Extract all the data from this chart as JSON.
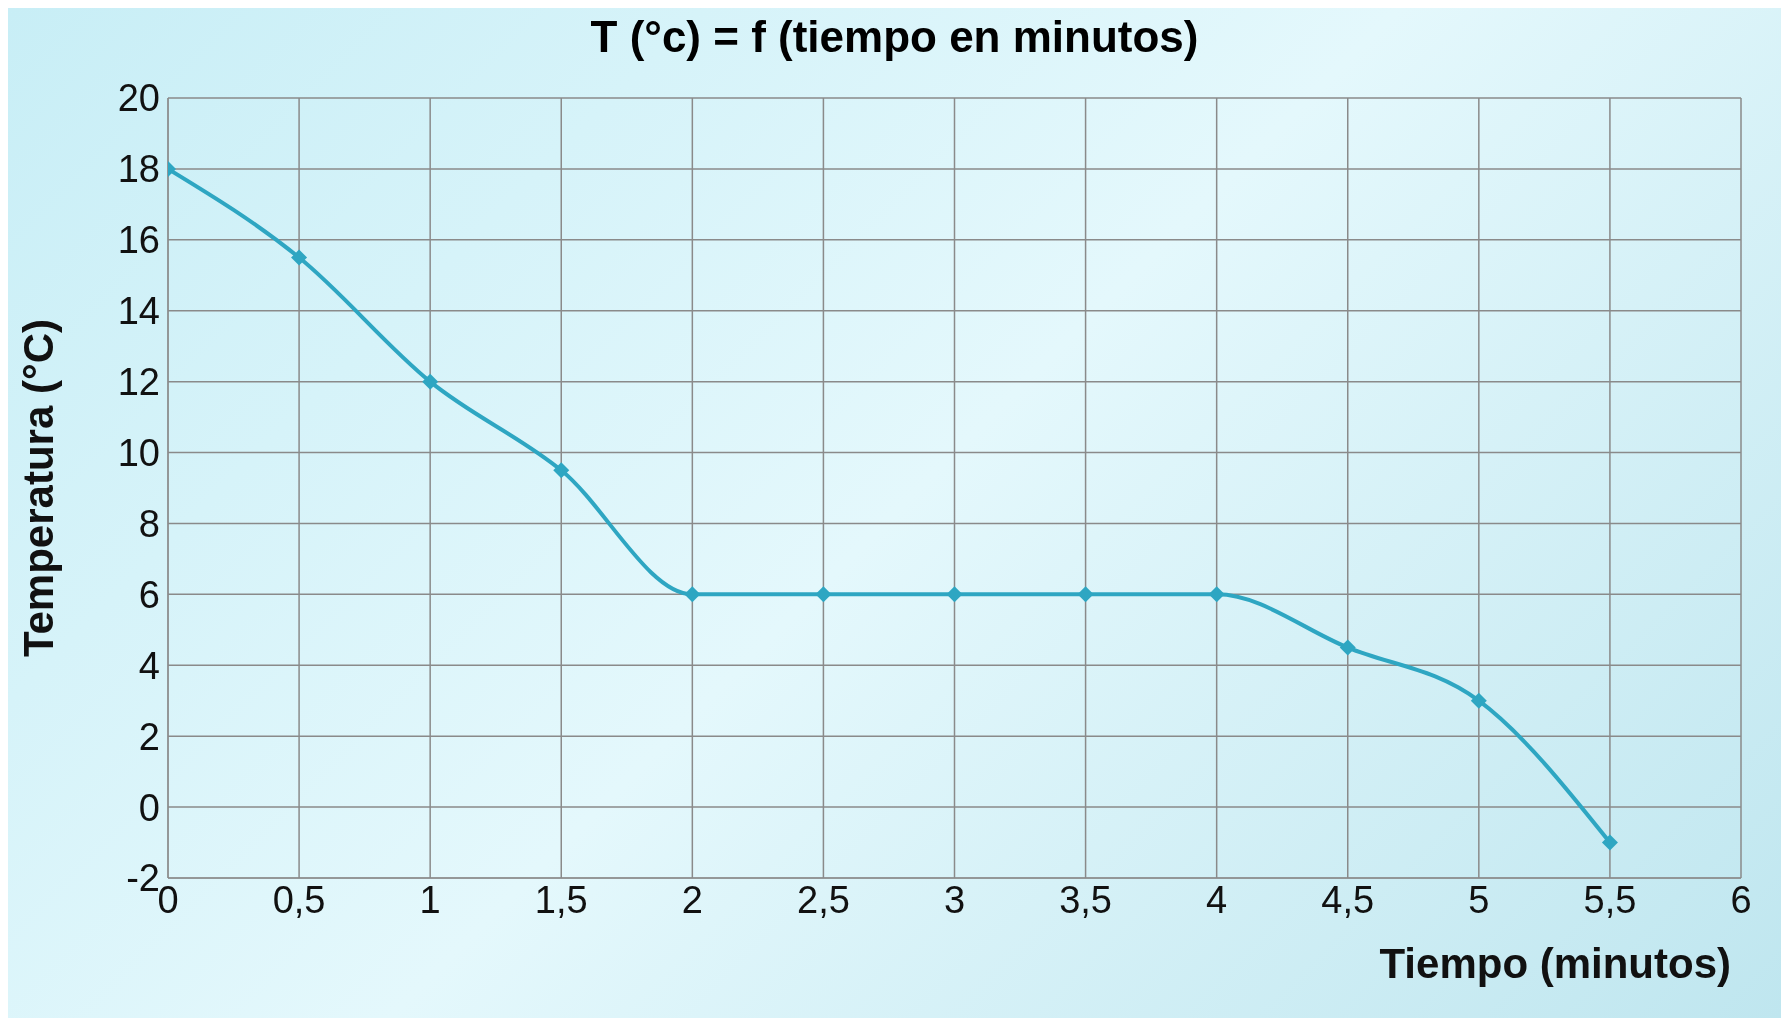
{
  "chart_data": {
    "type": "line",
    "title": "T (°c) = f (tiempo en minutos)",
    "xlabel": "Tiempo (minutos)",
    "ylabel": "Temperatura (°C)",
    "x": [
      0,
      0.5,
      1,
      1.5,
      2,
      2.5,
      3,
      3.5,
      4,
      4.5,
      5,
      5.5
    ],
    "series": [
      {
        "color": "#2ea6c2",
        "values": [
          18,
          15.5,
          12,
          9.5,
          6,
          6,
          6,
          6,
          6,
          4.5,
          3,
          -1
        ]
      }
    ],
    "xlim": [
      0,
      6
    ],
    "xticks": [
      0,
      {
        "value": 0.5,
        "label": "0,5"
      },
      1,
      {
        "value": 1.5,
        "label": "1,5"
      },
      2,
      {
        "value": 2.5,
        "label": "2,5"
      },
      3,
      {
        "value": 3.5,
        "label": "3,5"
      },
      4,
      {
        "value": 4.5,
        "label": "4,5"
      },
      5,
      {
        "value": 5.5,
        "label": "5,5"
      },
      6
    ],
    "ylim": [
      -2,
      20
    ],
    "yticks": [
      -2,
      0,
      2,
      4,
      6,
      8,
      10,
      12,
      14,
      16,
      18,
      20
    ],
    "grid": true,
    "legend": false,
    "marker": "diamond",
    "line_style": "solid"
  }
}
